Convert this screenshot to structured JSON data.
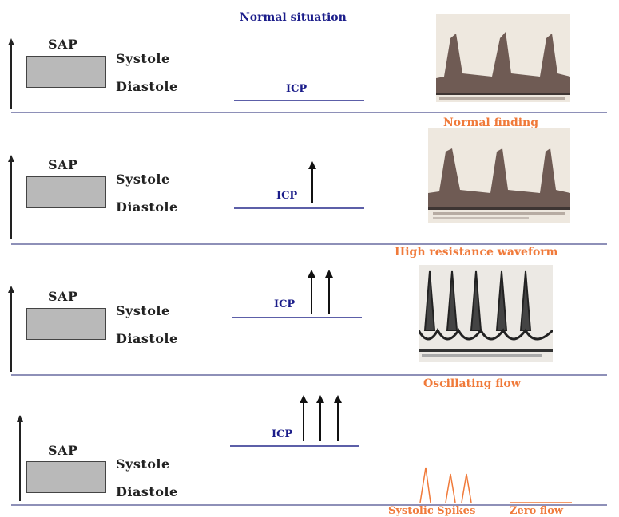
{
  "labels": {
    "sap": "SAP",
    "systole": "Systole",
    "diastole": "Diastole",
    "icp": "ICP"
  },
  "panels": [
    {
      "title": "Normal situation",
      "icp_arrows": 0
    },
    {
      "title": "Normal finding",
      "icp_arrows": 1
    },
    {
      "title": "High resistance waveform",
      "icp_arrows": 2
    },
    {
      "title": "Oscillating flow",
      "icp_arrows": 3
    }
  ],
  "bottom_labels": {
    "left": "Systolic Spikes",
    "right": "Zero flow"
  },
  "colors": {
    "title_normal": "#1b1d8a",
    "title_orange": "#f07a3a",
    "icp_line": "#5c5fa8",
    "sap_box": "#b9b9b9"
  }
}
